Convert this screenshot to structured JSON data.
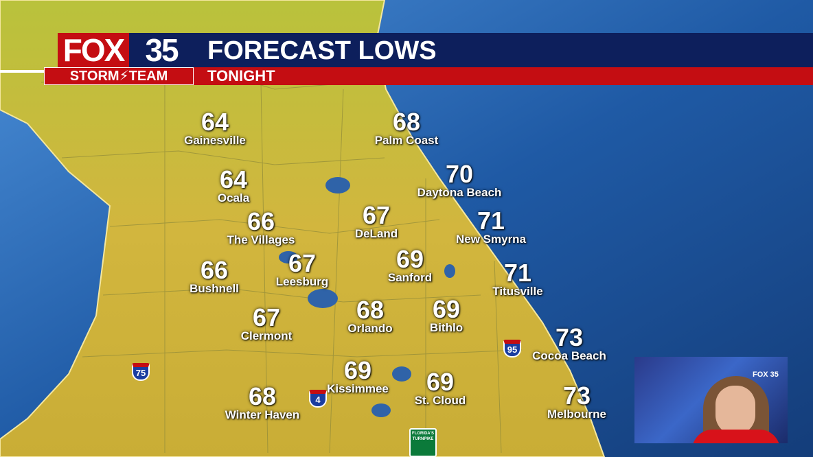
{
  "header": {
    "logo_fox": "FOX",
    "logo_number": "35",
    "logo_team": "STORM⚡TEAM",
    "title": "FORECAST LOWS",
    "subtitle": "TONIGHT"
  },
  "colors": {
    "land": "#c9b33a",
    "water": "#1d4f8f",
    "header_blue": "#0d1f5c",
    "header_red": "#c40d12"
  },
  "cities": [
    {
      "name": "Gainesville",
      "temp": "64"
    },
    {
      "name": "Palm Coast",
      "temp": "68"
    },
    {
      "name": "Ocala",
      "temp": "64"
    },
    {
      "name": "Daytona Beach",
      "temp": "70"
    },
    {
      "name": "The Villages",
      "temp": "66"
    },
    {
      "name": "DeLand",
      "temp": "67"
    },
    {
      "name": "New Smyrna",
      "temp": "71"
    },
    {
      "name": "Bushnell",
      "temp": "66"
    },
    {
      "name": "Leesburg",
      "temp": "67"
    },
    {
      "name": "Sanford",
      "temp": "69"
    },
    {
      "name": "Titusville",
      "temp": "71"
    },
    {
      "name": "Clermont",
      "temp": "67"
    },
    {
      "name": "Orlando",
      "temp": "68"
    },
    {
      "name": "Bithlo",
      "temp": "69"
    },
    {
      "name": "Cocoa Beach",
      "temp": "73"
    },
    {
      "name": "Kissimmee",
      "temp": "69"
    },
    {
      "name": "St. Cloud",
      "temp": "69"
    },
    {
      "name": "Winter Haven",
      "temp": "68"
    },
    {
      "name": "Melbourne",
      "temp": "73"
    }
  ],
  "highways": {
    "i75": "75",
    "i4": "4",
    "i95": "95",
    "turnpike": "FLORIDA'S TURNPIKE"
  },
  "camera": {
    "logo": "FOX 35"
  }
}
